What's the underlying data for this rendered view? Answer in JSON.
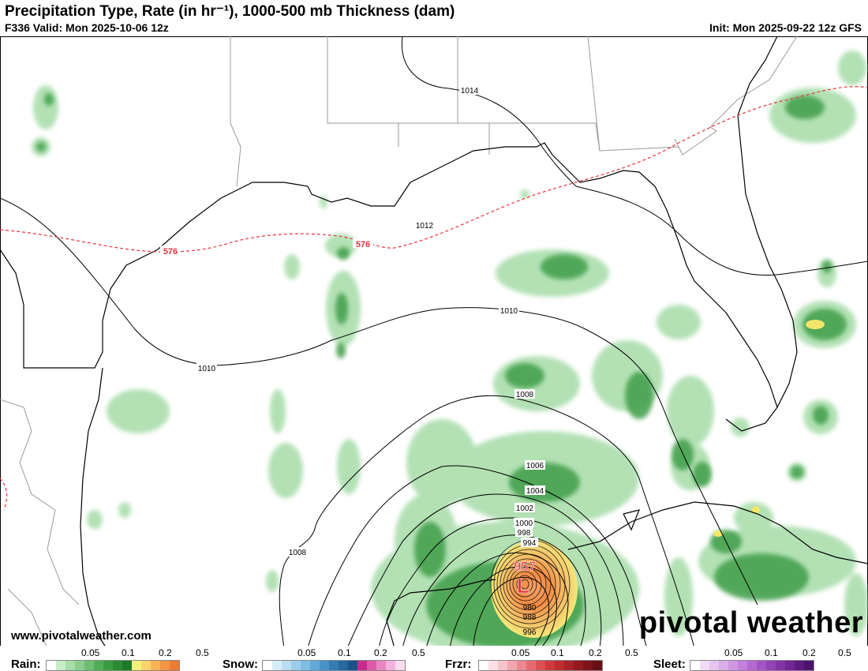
{
  "header": {
    "title": "Precipitation Type, Rate (in hr⁻¹), 1000-500 mb Thickness (dam)",
    "valid": "F336 Valid: Mon 2025-10-06 12z",
    "init": "Init: Mon 2025-09-22 12z GFS"
  },
  "map": {
    "isobar_labels": [
      "1014",
      "1012",
      "1010",
      "1010",
      "1008",
      "1008",
      "1006",
      "1004",
      "1002",
      "1000",
      "998",
      "994",
      "980",
      "988",
      "996"
    ],
    "thickness_labels": [
      "576",
      "576"
    ],
    "low_center": {
      "pressure": "957",
      "symbol": "L"
    },
    "colors": {
      "isobar": "#000000",
      "thickness": "#e8323c",
      "low": "#e8323c",
      "coastline": "#000000",
      "borders": "#9a9a9a"
    }
  },
  "branding": {
    "watermark": "pivotal weather",
    "site": "www.pivotalweather.com"
  },
  "legend": {
    "rain": {
      "label": "Rain:",
      "ticks": [
        "0.05",
        "0.1",
        "0.2",
        "0.5"
      ],
      "colors": [
        "#ffffff",
        "#c7ecc8",
        "#a8dca9",
        "#8ccd8e",
        "#6fbd73",
        "#53ad58",
        "#3c9c44",
        "#2a8b34",
        "#1e7a29",
        "#f5f07a",
        "#f9d36b",
        "#f7b456",
        "#f39544",
        "#ee7b34"
      ]
    },
    "snow": {
      "label": "Snow:",
      "ticks": [
        "0.05",
        "0.1",
        "0.2",
        "0.5"
      ],
      "colors": [
        "#ffffff",
        "#d6ecf7",
        "#b9ddf1",
        "#9ccdeb",
        "#7fbde2",
        "#62a9d6",
        "#4993c7",
        "#377cb4",
        "#28679f",
        "#1b528a",
        "#c72c8c",
        "#dc5aa8",
        "#e986c3",
        "#f3b2dc",
        "#fadcef"
      ]
    },
    "frzr": {
      "label": "Frzr:",
      "ticks": [
        "0.05",
        "0.1",
        "0.2",
        "0.5"
      ],
      "colors": [
        "#ffffff",
        "#fbdfe4",
        "#f7c3cb",
        "#f2a5ae",
        "#ec8891",
        "#e56b72",
        "#dc4f54",
        "#cf3a3d",
        "#bd2d30",
        "#a82327",
        "#921a21",
        "#7c141b",
        "#661016"
      ]
    },
    "sleet": {
      "label": "Sleet:",
      "ticks": [
        "0.05",
        "0.1",
        "0.2",
        "0.5"
      ],
      "colors": [
        "#ffffff",
        "#f1dcf5",
        "#e6c5ef",
        "#dbaee9",
        "#cf97e2",
        "#c280da",
        "#b469d0",
        "#a455c4",
        "#9443b6",
        "#8233a6",
        "#702694",
        "#5d1b80",
        "#4b126b"
      ]
    }
  }
}
